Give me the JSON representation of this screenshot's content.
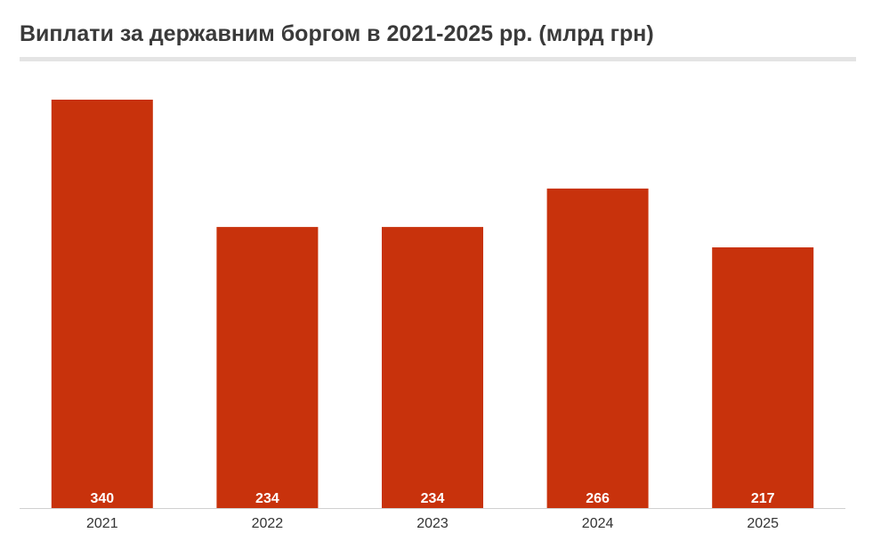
{
  "chart_data": {
    "type": "bar",
    "title": "Виплати за державним боргом в 2021-2025 рр. (млрд грн)",
    "categories": [
      "2021",
      "2022",
      "2023",
      "2024",
      "2025"
    ],
    "values": [
      340,
      234,
      234,
      266,
      217
    ],
    "data_labels": [
      "340",
      "234",
      "234",
      "266",
      "217"
    ],
    "xlabel": "",
    "ylabel": "",
    "ylim": [
      0,
      340
    ],
    "grid": false,
    "legend": "none",
    "bar_color": "#c8320c"
  }
}
